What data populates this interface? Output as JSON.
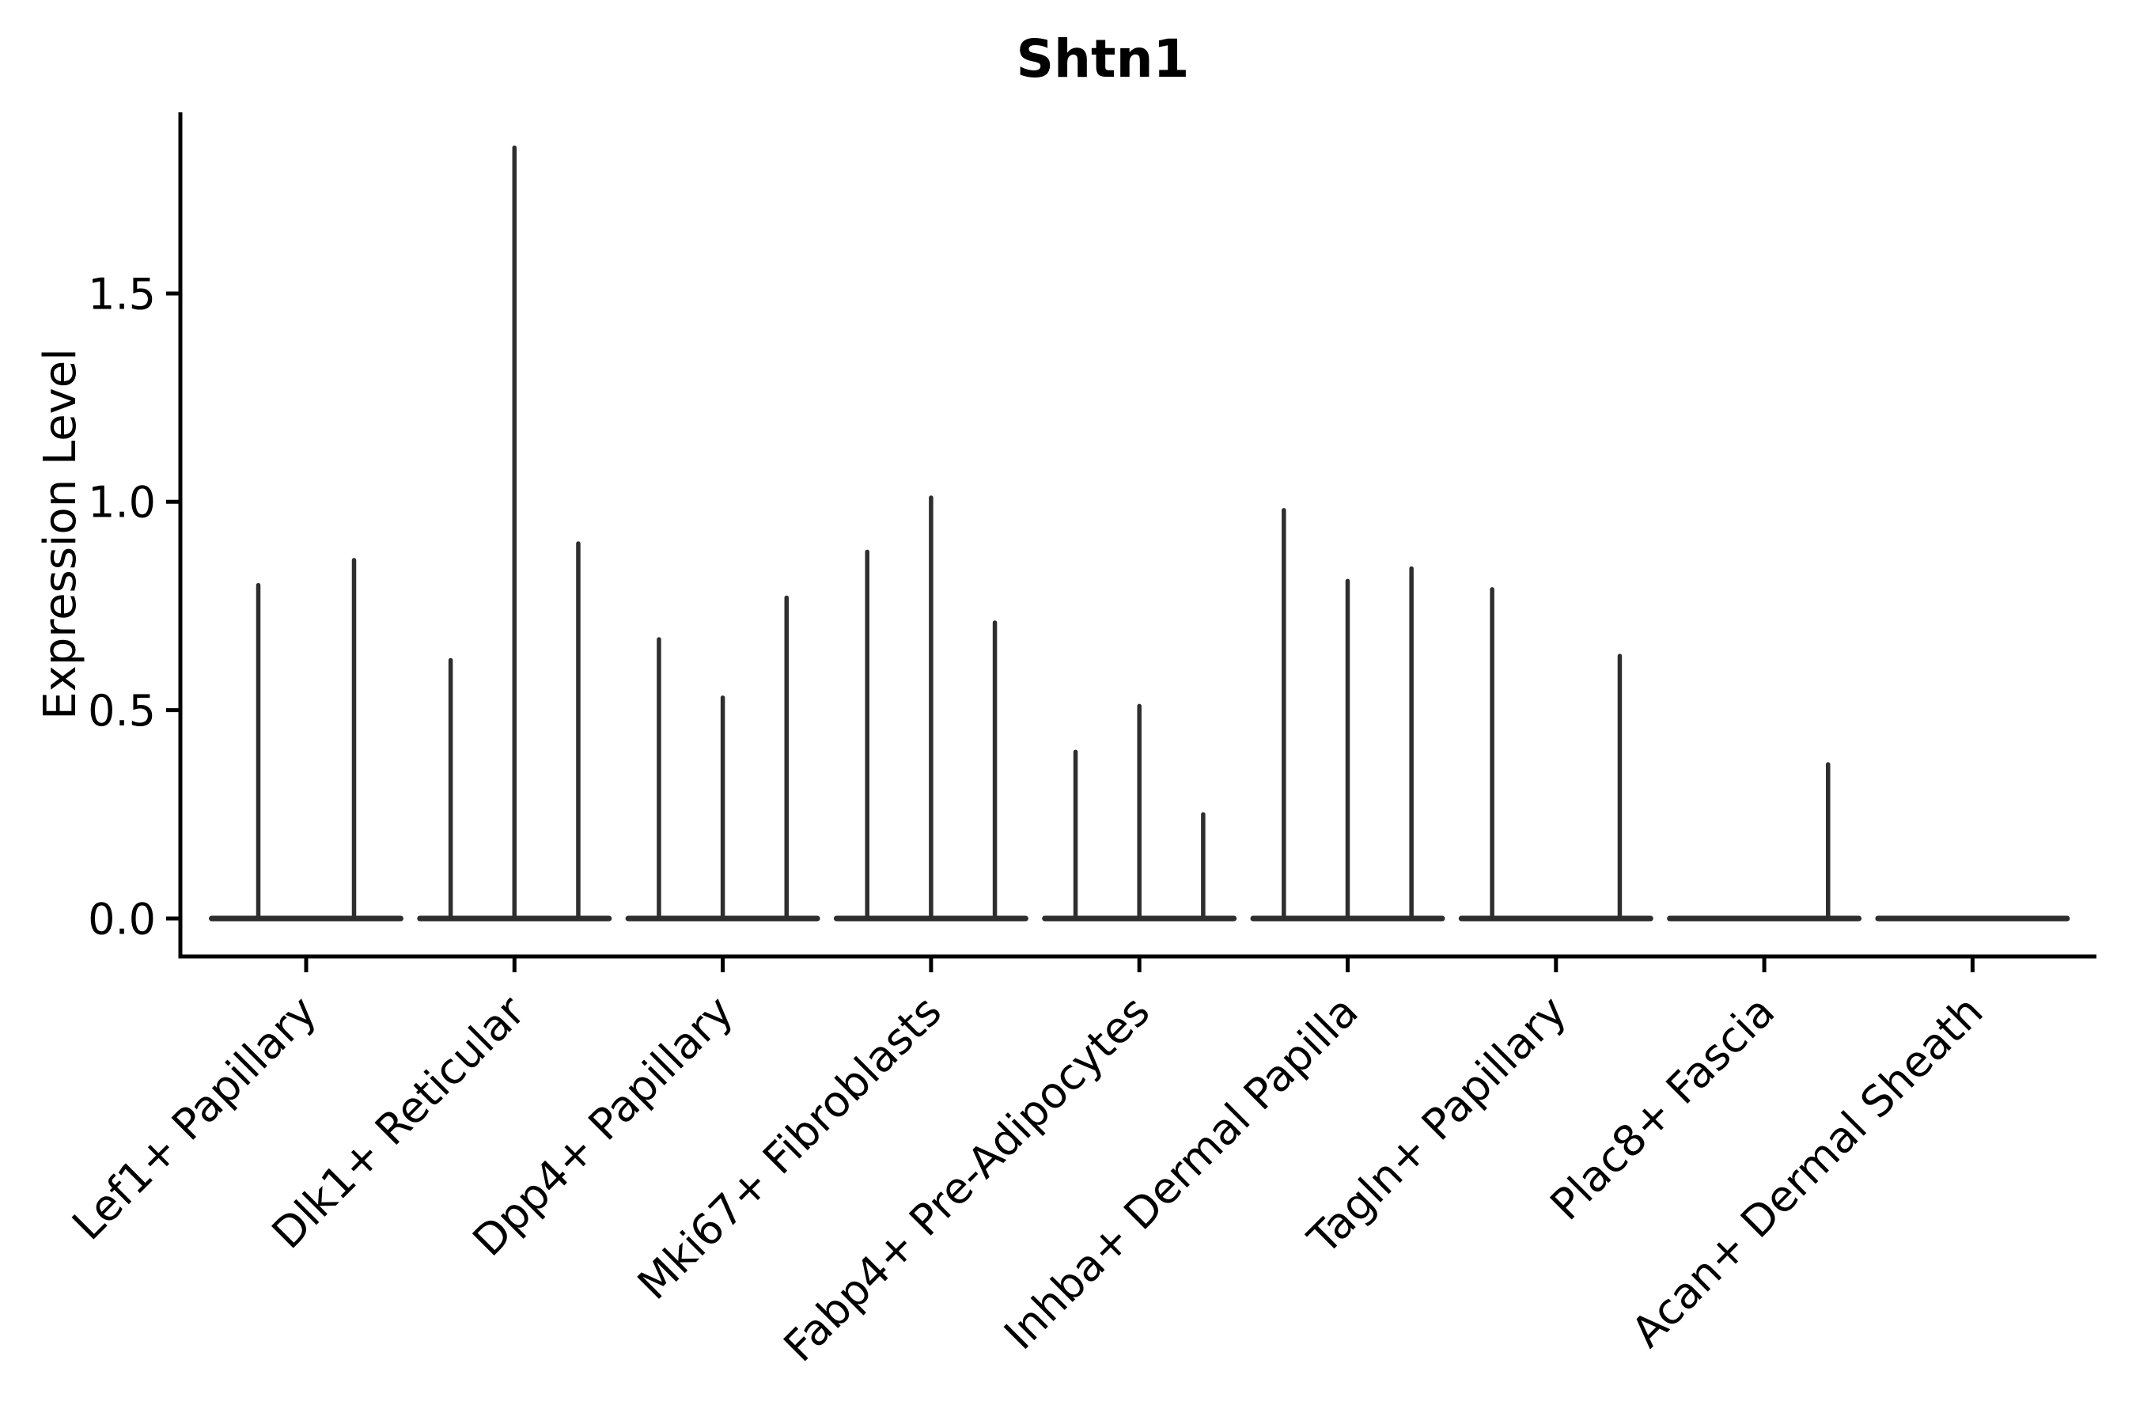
{
  "page": {
    "background": "#ffffff"
  },
  "chart_data": {
    "type": "violin",
    "title": "Shtn1",
    "xlabel": "",
    "ylabel": "Expression Level",
    "grid": false,
    "legend": null,
    "ylim": [
      -0.09,
      1.94
    ],
    "yticks": [
      {
        "value": 0.0,
        "label": "0.0"
      },
      {
        "value": 0.5,
        "label": "0.5"
      },
      {
        "value": 1.0,
        "label": "1.0"
      },
      {
        "value": 1.5,
        "label": "1.5"
      }
    ],
    "violin_color": "#2e2e2e",
    "axis_color": "#000000",
    "x_label_rotation_deg": 45,
    "categories": [
      {
        "label": "Lef1+ Papillary",
        "violin_max_values": [
          0.8,
          0.86
        ]
      },
      {
        "label": "Dlk1+ Reticular",
        "violin_max_values": [
          0.62,
          1.85,
          0.9
        ]
      },
      {
        "label": "Dpp4+ Papillary",
        "violin_max_values": [
          0.67,
          0.53,
          0.77
        ]
      },
      {
        "label": "Mki67+ Fibroblasts",
        "violin_max_values": [
          0.88,
          1.01,
          0.71
        ]
      },
      {
        "label": "Fabp4+ Pre-Adipocytes",
        "violin_max_values": [
          0.4,
          0.51,
          0.25
        ]
      },
      {
        "label": "Inhba+ Dermal Papilla",
        "violin_max_values": [
          0.98,
          0.81,
          0.84
        ]
      },
      {
        "label": "Tagln+ Papillary",
        "violin_max_values": [
          0.79,
          null,
          0.63
        ]
      },
      {
        "label": "Plac8+ Fascia",
        "violin_max_values": [
          null,
          null,
          0.37
        ]
      },
      {
        "label": "Acan+ Dermal Sheath",
        "violin_max_values": [
          null,
          null,
          null
        ]
      }
    ]
  }
}
